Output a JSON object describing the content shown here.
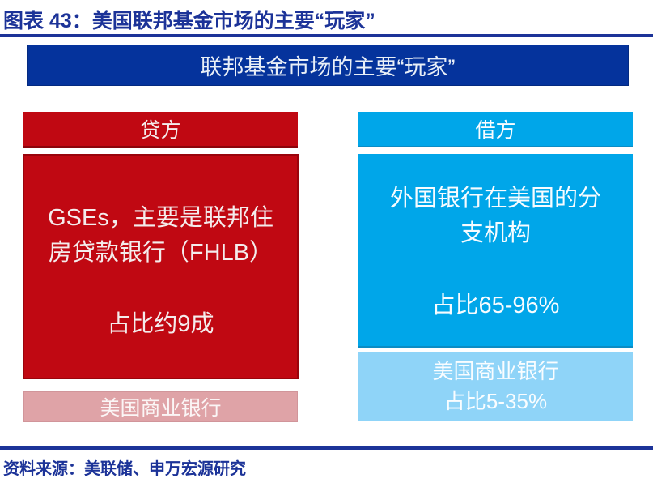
{
  "figure": {
    "title": "图表 43：美国联邦基金市场的主要“玩家”",
    "source": "资料来源：美联储、申万宏源研究"
  },
  "diagram": {
    "banner": "联邦基金市场的主要“玩家”",
    "lender": {
      "header": "贷方",
      "main_lines": [
        "GSEs，主要是联邦住",
        "房贷款银行（FHLB）"
      ],
      "share": "占比约9成",
      "footer": "美国商业银行"
    },
    "borrower": {
      "header": "借方",
      "main_lines": [
        "外国银行在美国的分",
        "支机构"
      ],
      "share": "占比65-96%",
      "footer_lines": [
        "美国商业银行",
        "占比5-35%"
      ]
    }
  },
  "colors": {
    "navy": "#1C3398",
    "banner_bg": "#05339C",
    "red": "#C00812",
    "pink": "#DFA3A7",
    "blue": "#00A6E9",
    "light_blue": "#8FD4F8"
  }
}
